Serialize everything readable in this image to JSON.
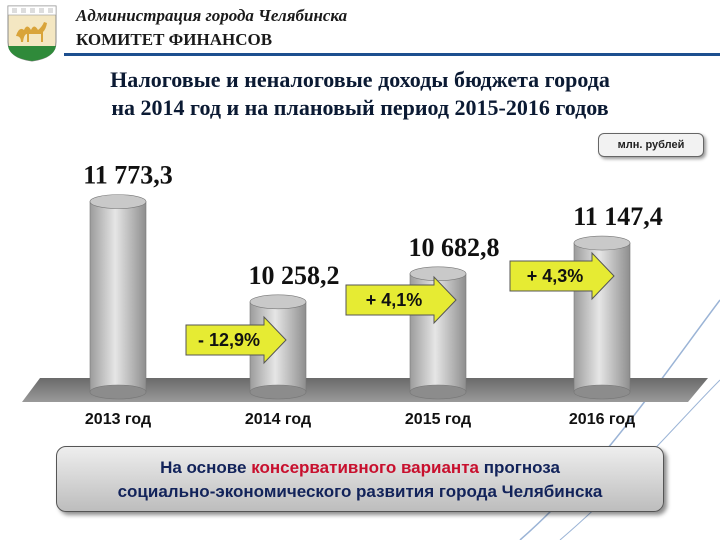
{
  "header": {
    "org_line1": "Администрация города Челябинска",
    "org_line2": "КОМИТЕТ ФИНАНСОВ",
    "crest_icon": "chelyabinsk-camel-crest-icon"
  },
  "title_line1": "Налоговые и неналоговые доходы бюджета города",
  "title_line2": "на 2014 год и на плановый период 2015-2016 годов",
  "unit_label": "млн. рублей",
  "chart_data": {
    "type": "bar",
    "categories": [
      "2013 год",
      "2014 год",
      "2015 год",
      "2016 год"
    ],
    "values": [
      11773.3,
      10258.2,
      10682.8,
      11147.4
    ],
    "value_labels": [
      "11 773,3",
      "10 258,2",
      "10 682,8",
      "11 147,4"
    ],
    "changes": [
      {
        "from": "2013 год",
        "to": "2014 год",
        "label": "- 12,9%"
      },
      {
        "from": "2014 год",
        "to": "2015 год",
        "label": "+ 4,1%"
      },
      {
        "from": "2015 год",
        "to": "2016 год",
        "label": "+ 4,3%"
      }
    ],
    "ylim": [
      0,
      12000
    ],
    "grid": false,
    "legend": "none",
    "bar_color": "#c9c9c9",
    "arrow_color": "#e6eb33"
  },
  "note": {
    "part1": "На основе ",
    "highlight": "консервативного варианта",
    "part2": " прогноза",
    "line2": "социально-экономического развития города Челябинска"
  },
  "colors": {
    "accent": "#1d4f8f",
    "highlight": "#c8102e",
    "text": "#12235a"
  }
}
